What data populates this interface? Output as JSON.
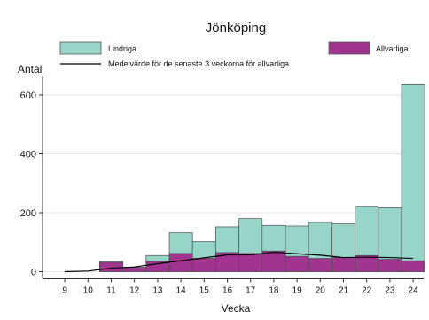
{
  "chart_data": {
    "type": "bar",
    "title": "Jönköping",
    "xlabel": "Vecka",
    "ylabel": "Antal",
    "ylim": [
      0,
      650
    ],
    "yticks": [
      0,
      200,
      400,
      600
    ],
    "categories": [
      "9",
      "10",
      "11",
      "12",
      "13",
      "14",
      "15",
      "16",
      "17",
      "18",
      "19",
      "20",
      "21",
      "22",
      "23",
      "24"
    ],
    "legend_position": "top",
    "grid": true,
    "series": [
      {
        "name": "Lindriga",
        "kind": "bar",
        "color": "#96d5c8",
        "values": [
          0,
          0,
          35,
          5,
          55,
          132,
          102,
          152,
          180,
          157,
          155,
          167,
          162,
          222,
          217,
          635
        ]
      },
      {
        "name": "Allvarliga",
        "kind": "bar",
        "color": "#a0348f",
        "values": [
          0,
          0,
          32,
          15,
          35,
          62,
          45,
          65,
          62,
          70,
          52,
          45,
          48,
          55,
          42,
          37
        ]
      },
      {
        "name": "Medelvärde för de senaste 3 veckorna för allvarliga",
        "kind": "line",
        "color": "#000000",
        "values": [
          0,
          2,
          12,
          16,
          27,
          37,
          47,
          57,
          57,
          66,
          61,
          56,
          48,
          49,
          48,
          45
        ]
      }
    ]
  }
}
